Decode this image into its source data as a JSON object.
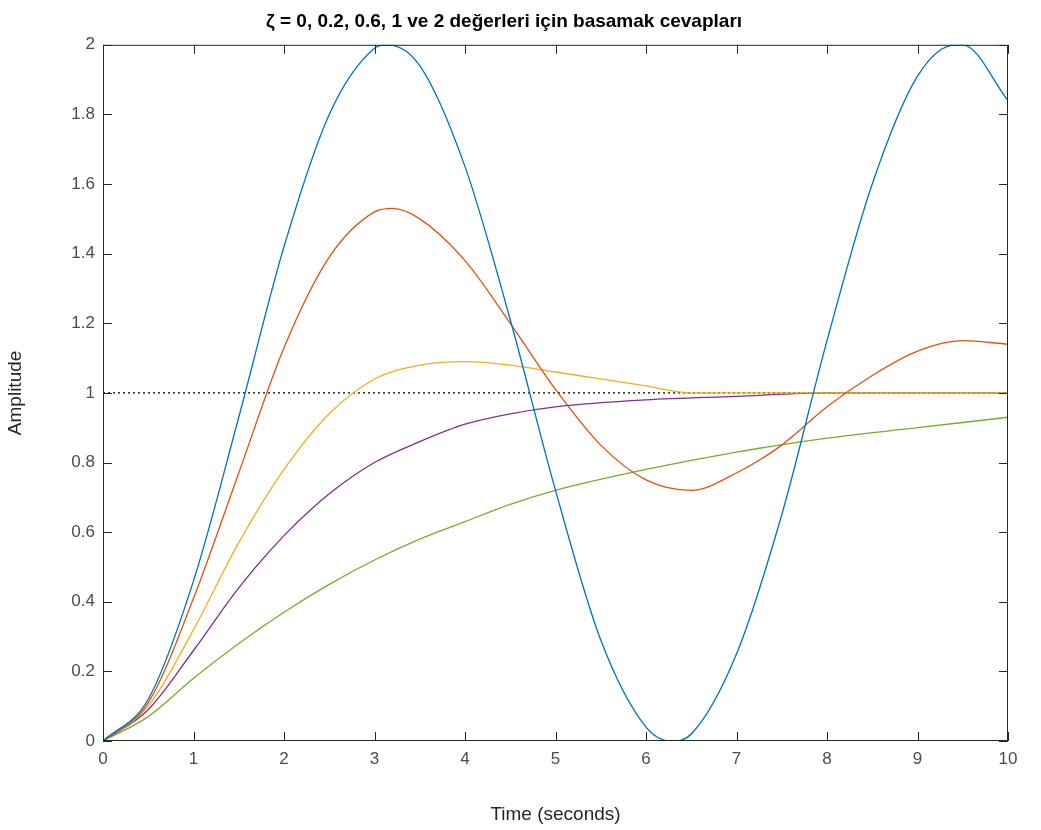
{
  "chart_data": {
    "type": "line",
    "title": "ζ = 0, 0.2, 0.6, 1 ve 2 değerleri için basamak cevapları",
    "xlabel": "Time (seconds)",
    "ylabel": "Amplitude",
    "xlim": [
      0,
      10
    ],
    "xticks": [
      0,
      1,
      2,
      3,
      4,
      5,
      6,
      7,
      8,
      9,
      10
    ],
    "ylim": [
      0,
      2
    ],
    "yticks": [
      0,
      0.2,
      0.4,
      0.6,
      0.8,
      1,
      1.2,
      1.4,
      1.6,
      1.8,
      2
    ],
    "grid": false,
    "legend": false,
    "series": [
      {
        "color": "#0072bd",
        "x": [
          0,
          0.5,
          1,
          1.5,
          2,
          2.5,
          3,
          3.14,
          3.5,
          4,
          4.5,
          5,
          5.5,
          6,
          6.28,
          6.5,
          7,
          7.5,
          8,
          8.5,
          9,
          9.42,
          9.5,
          10
        ],
        "values": [
          0,
          0.12,
          0.46,
          0.93,
          1.42,
          1.8,
          1.99,
          2,
          1.94,
          1.65,
          1.21,
          0.72,
          0.29,
          0.04,
          0,
          0.02,
          0.25,
          0.65,
          1.15,
          1.6,
          1.91,
          2,
          2,
          1.84
        ]
      },
      {
        "color": "#d95319",
        "x": [
          0,
          0.5,
          1,
          1.5,
          2,
          2.5,
          3,
          3.2,
          3.5,
          4,
          4.5,
          5,
          5.5,
          6,
          6.5,
          7,
          7.5,
          8,
          8.5,
          9,
          9.5,
          10
        ],
        "values": [
          0,
          0.11,
          0.41,
          0.77,
          1.13,
          1.39,
          1.52,
          1.53,
          1.5,
          1.38,
          1.2,
          1.01,
          0.85,
          0.75,
          0.72,
          0.77,
          0.85,
          0.96,
          1.05,
          1.12,
          1.15,
          1.14
        ]
      },
      {
        "color": "#edb120",
        "x": [
          0,
          0.5,
          1,
          1.5,
          2,
          2.5,
          3,
          3.5,
          4,
          4.5,
          5,
          5.5,
          6,
          6.5,
          7,
          8,
          9,
          10
        ],
        "values": [
          0,
          0.1,
          0.32,
          0.57,
          0.78,
          0.94,
          1.04,
          1.08,
          1.09,
          1.08,
          1.06,
          1.04,
          1.02,
          1,
          1,
          1,
          1,
          1
        ]
      },
      {
        "color": "#7e2f8e",
        "x": [
          0,
          0.5,
          1,
          1.5,
          2,
          2.5,
          3,
          3.5,
          4,
          4.5,
          5,
          6,
          7,
          8,
          9,
          10
        ],
        "values": [
          0,
          0.09,
          0.26,
          0.44,
          0.59,
          0.71,
          0.8,
          0.86,
          0.91,
          0.94,
          0.96,
          0.98,
          0.99,
          1,
          1,
          1
        ]
      },
      {
        "color": "#77ac30",
        "x": [
          0,
          0.5,
          1,
          1.5,
          2,
          2.5,
          3,
          3.5,
          4,
          4.5,
          5,
          6,
          7,
          8,
          9,
          10
        ],
        "values": [
          0,
          0.07,
          0.18,
          0.28,
          0.37,
          0.45,
          0.52,
          0.58,
          0.63,
          0.68,
          0.72,
          0.78,
          0.83,
          0.87,
          0.9,
          0.93
        ]
      }
    ],
    "ref_lines": [
      {
        "axis": "y",
        "value": 1,
        "color": "#000000",
        "line_style": "dotted"
      }
    ]
  }
}
